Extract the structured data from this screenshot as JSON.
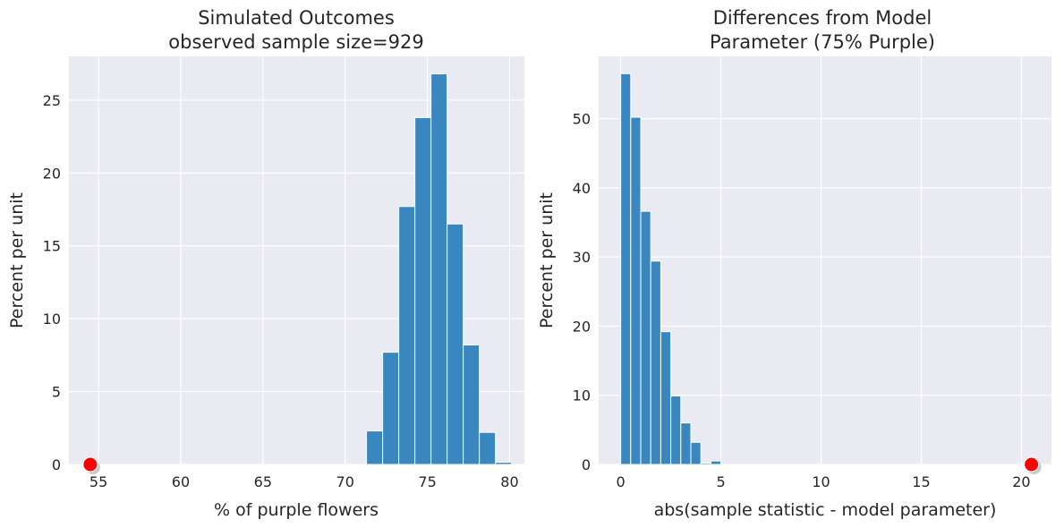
{
  "chart_data": [
    {
      "type": "bar",
      "subtype": "histogram",
      "title": [
        "Simulated Outcomes",
        "observed sample size=929"
      ],
      "xlabel": "% of purple flowers",
      "ylabel": "Percent per unit",
      "xlim": [
        53.2,
        80.9
      ],
      "ylim": [
        0,
        28
      ],
      "xticks": [
        55,
        60,
        65,
        70,
        75,
        80
      ],
      "yticks": [
        0,
        5,
        10,
        15,
        20,
        25
      ],
      "grid": true,
      "bin_edges": [
        71.3,
        72.28,
        73.26,
        74.24,
        75.22,
        76.2,
        77.18,
        78.16,
        79.14,
        80.12
      ],
      "values": [
        2.3,
        7.7,
        17.7,
        23.8,
        26.8,
        16.5,
        8.2,
        2.2,
        0.15
      ],
      "bar_color": "#3a87c0",
      "observed_point": {
        "x": 54.5,
        "y": 0,
        "color": "#ff0000"
      }
    },
    {
      "type": "bar",
      "subtype": "histogram",
      "title": [
        "Differences from Model",
        "Parameter (75% Purple)"
      ],
      "xlabel": "abs(sample statistic - model parameter)",
      "ylabel": "Percent per unit",
      "xlim": [
        -1.1,
        21.5
      ],
      "ylim": [
        0,
        59
      ],
      "xticks": [
        0,
        5,
        10,
        15,
        20
      ],
      "yticks": [
        0,
        10,
        20,
        30,
        40,
        50
      ],
      "grid": true,
      "bin_edges": [
        0,
        0.5,
        1.0,
        1.5,
        2.0,
        2.5,
        3.0,
        3.5,
        4.0,
        4.5,
        5.0
      ],
      "values": [
        56.5,
        50.2,
        36.6,
        29.4,
        19.2,
        9.9,
        6.0,
        3.2,
        0.2,
        0.5
      ],
      "bar_color": "#3a87c0",
      "observed_point": {
        "x": 20.5,
        "y": 0,
        "color": "#ff0000"
      }
    }
  ]
}
